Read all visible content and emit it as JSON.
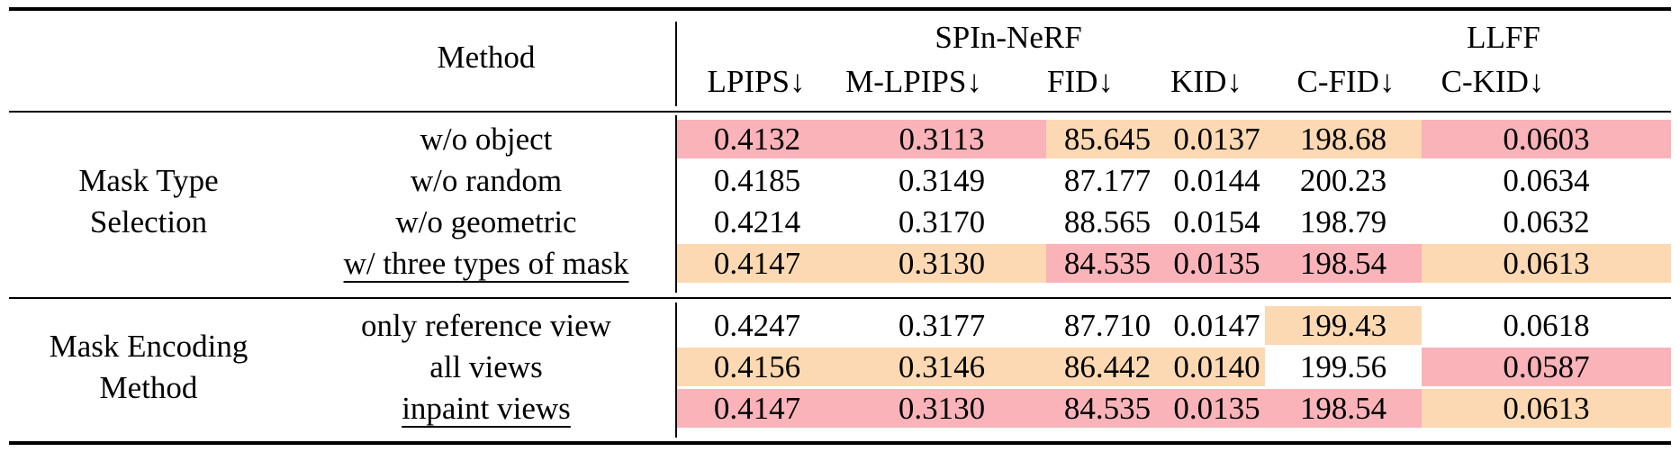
{
  "header": {
    "method_label": "Method",
    "group1_label": "SPIn-NeRF",
    "group2_label": "LLFF",
    "columns": [
      "LPIPS↓",
      "M-LPIPS↓",
      "FID↓",
      "KID↓",
      "C-FID↓",
      "C-KID↓"
    ]
  },
  "colors": {
    "best": "#f9b3b9",
    "second": "#fcd9b2"
  },
  "sections": [
    {
      "label_lines": [
        "Mask Type",
        "Selection"
      ],
      "rows": [
        {
          "method": "w/o object",
          "underline": false,
          "values": [
            "0.4132",
            "0.3113",
            "85.645",
            "0.0137",
            "198.68",
            "0.0603"
          ],
          "highlight": [
            "best",
            "best",
            "second",
            "second",
            "second",
            "best"
          ]
        },
        {
          "method": "w/o random",
          "underline": false,
          "values": [
            "0.4185",
            "0.3149",
            "87.177",
            "0.0144",
            "200.23",
            "0.0634"
          ],
          "highlight": [
            "",
            "",
            "",
            "",
            "",
            ""
          ]
        },
        {
          "method": "w/o geometric",
          "underline": false,
          "values": [
            "0.4214",
            "0.3170",
            "88.565",
            "0.0154",
            "198.79",
            "0.0632"
          ],
          "highlight": [
            "",
            "",
            "",
            "",
            "",
            ""
          ]
        },
        {
          "method": "w/ three types of mask",
          "underline": true,
          "values": [
            "0.4147",
            "0.3130",
            "84.535",
            "0.0135",
            "198.54",
            "0.0613"
          ],
          "highlight": [
            "second",
            "second",
            "best",
            "best",
            "best",
            "second"
          ]
        }
      ]
    },
    {
      "label_lines": [
        "Mask Encoding",
        "Method"
      ],
      "rows": [
        {
          "method": "only reference view",
          "underline": false,
          "values": [
            "0.4247",
            "0.3177",
            "87.710",
            "0.0147",
            "199.43",
            "0.0618"
          ],
          "highlight": [
            "",
            "",
            "",
            "",
            "second",
            ""
          ]
        },
        {
          "method": "all views",
          "underline": false,
          "values": [
            "0.4156",
            "0.3146",
            "86.442",
            "0.0140",
            "199.56",
            "0.0587"
          ],
          "highlight": [
            "second",
            "second",
            "second",
            "second",
            "",
            "best"
          ]
        },
        {
          "method": "inpaint views",
          "underline": true,
          "values": [
            "0.4147",
            "0.3130",
            "84.535",
            "0.0135",
            "198.54",
            "0.0613"
          ],
          "highlight": [
            "best",
            "best",
            "best",
            "best",
            "best",
            "second"
          ]
        }
      ]
    }
  ]
}
